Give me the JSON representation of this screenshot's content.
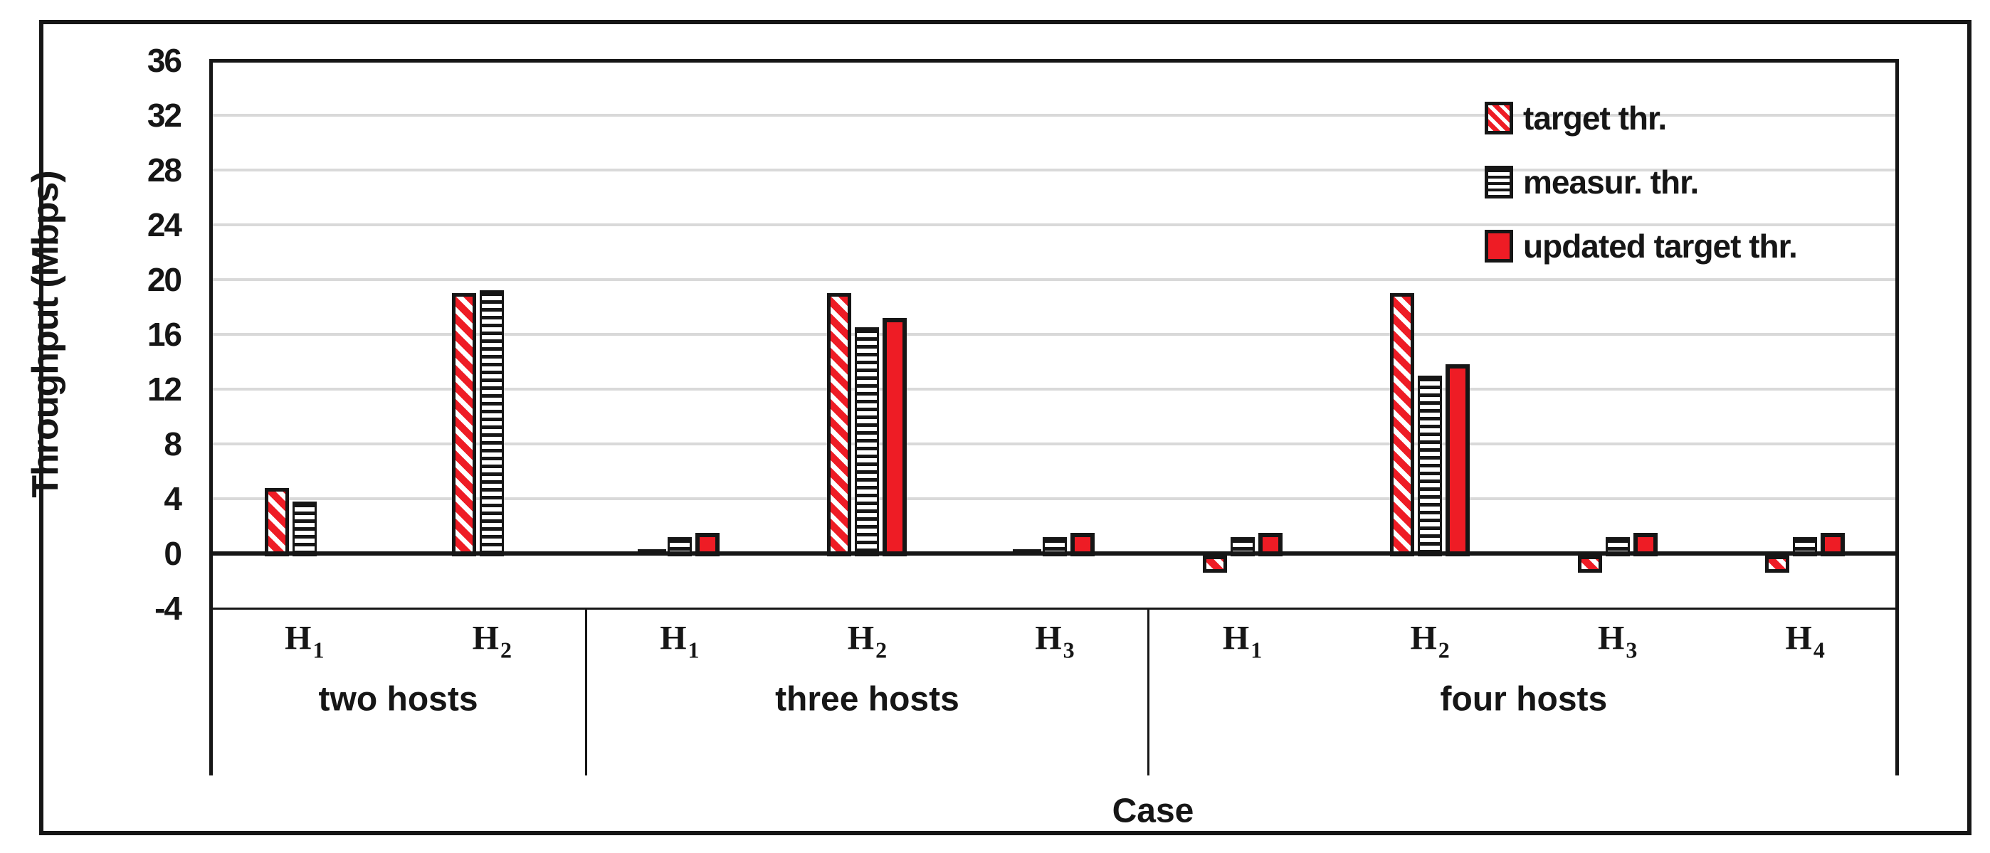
{
  "chart_data": {
    "type": "bar",
    "title": "",
    "xlabel": "Case",
    "ylabel": "Throughput (Mbps)",
    "ylim": [
      -4,
      36
    ],
    "ytick_step": 4,
    "yticks": [
      36,
      32,
      28,
      24,
      20,
      16,
      12,
      8,
      4,
      0,
      -4
    ],
    "grid": "horizontal-light-gray",
    "legend_position": "top-right-inside",
    "series": [
      {
        "name": "target thr.",
        "key": "target",
        "style": "red-diagonal-hatch-white-fill-black-outline"
      },
      {
        "name": "measur. thr.",
        "key": "measured",
        "style": "black-horizontal-stripes-white-fill"
      },
      {
        "name": "updated target thr.",
        "key": "updated",
        "style": "solid-red-black-outline"
      }
    ],
    "groups": [
      {
        "label": "two hosts",
        "hosts": [
          {
            "base": "H",
            "sub": "1",
            "values": {
              "target": 4.8,
              "measured": 3.8,
              "updated": 0
            }
          },
          {
            "base": "H",
            "sub": "2",
            "values": {
              "target": 19,
              "measured": 19.2,
              "updated": 0
            }
          }
        ]
      },
      {
        "label": "three hosts",
        "hosts": [
          {
            "base": "H",
            "sub": "1",
            "values": {
              "target": 0.2,
              "measured": 1.2,
              "updated": 1.5
            }
          },
          {
            "base": "H",
            "sub": "2",
            "values": {
              "target": 19,
              "measured": 16.5,
              "updated": 17.2
            }
          },
          {
            "base": "H",
            "sub": "3",
            "values": {
              "target": 0.2,
              "measured": 1.2,
              "updated": 1.5
            }
          }
        ]
      },
      {
        "label": "four hosts",
        "hosts": [
          {
            "base": "H",
            "sub": "1",
            "values": {
              "target": -1,
              "measured": 1.2,
              "updated": 1.5
            }
          },
          {
            "base": "H",
            "sub": "2",
            "values": {
              "target": 19,
              "measured": 13,
              "updated": 13.8
            }
          },
          {
            "base": "H",
            "sub": "3",
            "values": {
              "target": -1,
              "measured": 1.2,
              "updated": 1.5
            }
          },
          {
            "base": "H",
            "sub": "4",
            "values": {
              "target": -1,
              "measured": 1.2,
              "updated": 1.5
            }
          }
        ]
      }
    ],
    "colors": {
      "red": "#EE1C25",
      "outline": "#161616",
      "gridline": "#D9D9D9"
    }
  }
}
